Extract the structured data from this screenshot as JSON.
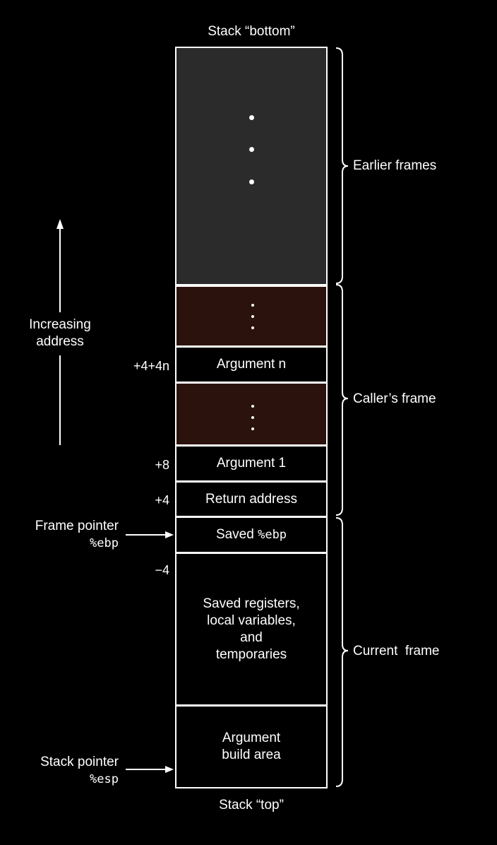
{
  "stack": {
    "bottom_label": "Stack “bottom”",
    "top_label": "Stack “top”",
    "cells": {
      "argument_n": "Argument n",
      "argument_1": "Argument 1",
      "return_address": "Return address",
      "saved_ebp_prefix": "Saved ",
      "saved_ebp_reg": "%ebp",
      "locals_line1": "Saved registers,",
      "locals_line2": "local variables,",
      "locals_line3": "and",
      "locals_line4": "temporaries",
      "build_line1": "Argument",
      "build_line2": "build area"
    }
  },
  "offsets": {
    "arg_n": "+4+4n",
    "arg_1": "+8",
    "return": "+4",
    "locals": "−4"
  },
  "frames": {
    "earlier": "Earlier frames",
    "caller": "Caller’s frame",
    "current": "Current  frame"
  },
  "pointers": {
    "frame_label": "Frame pointer",
    "frame_reg": "%ebp",
    "stack_label": "Stack pointer",
    "stack_reg": "%esp"
  },
  "direction": {
    "line1": "Increasing",
    "line2": "address"
  },
  "colors": {
    "background": "#000000",
    "earlier_fill": "#2b2b2b",
    "caller_fill": "#2c120c",
    "stroke": "#ffffff"
  }
}
